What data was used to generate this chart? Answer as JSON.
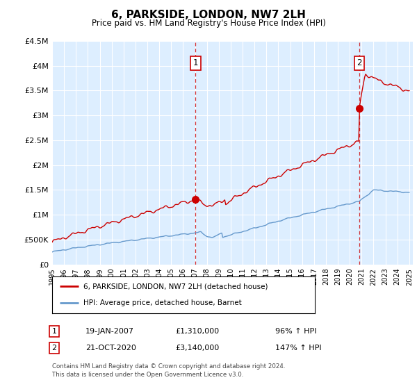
{
  "title": "6, PARKSIDE, LONDON, NW7 2LH",
  "subtitle": "Price paid vs. HM Land Registry's House Price Index (HPI)",
  "plot_bg_color": "#ddeeff",
  "red_line_color": "#cc0000",
  "blue_line_color": "#6699cc",
  "ylim": [
    0,
    4500000
  ],
  "yticks": [
    0,
    500000,
    1000000,
    1500000,
    2000000,
    2500000,
    3000000,
    3500000,
    4000000,
    4500000
  ],
  "ytick_labels": [
    "£0",
    "£500K",
    "£1M",
    "£1.5M",
    "£2M",
    "£2.5M",
    "£3M",
    "£3.5M",
    "£4M",
    "£4.5M"
  ],
  "sale1_date": 2007.05,
  "sale1_price": 1310000,
  "sale1_label": "1",
  "sale2_date": 2020.8,
  "sale2_price": 3140000,
  "sale2_label": "2",
  "legend_red": "6, PARKSIDE, LONDON, NW7 2LH (detached house)",
  "legend_blue": "HPI: Average price, detached house, Barnet",
  "note1_label": "1",
  "note1_date": "19-JAN-2007",
  "note1_price": "£1,310,000",
  "note1_hpi": "96% ↑ HPI",
  "note2_label": "2",
  "note2_date": "21-OCT-2020",
  "note2_price": "£3,140,000",
  "note2_hpi": "147% ↑ HPI",
  "footer": "Contains HM Land Registry data © Crown copyright and database right 2024.\nThis data is licensed under the Open Government Licence v3.0."
}
